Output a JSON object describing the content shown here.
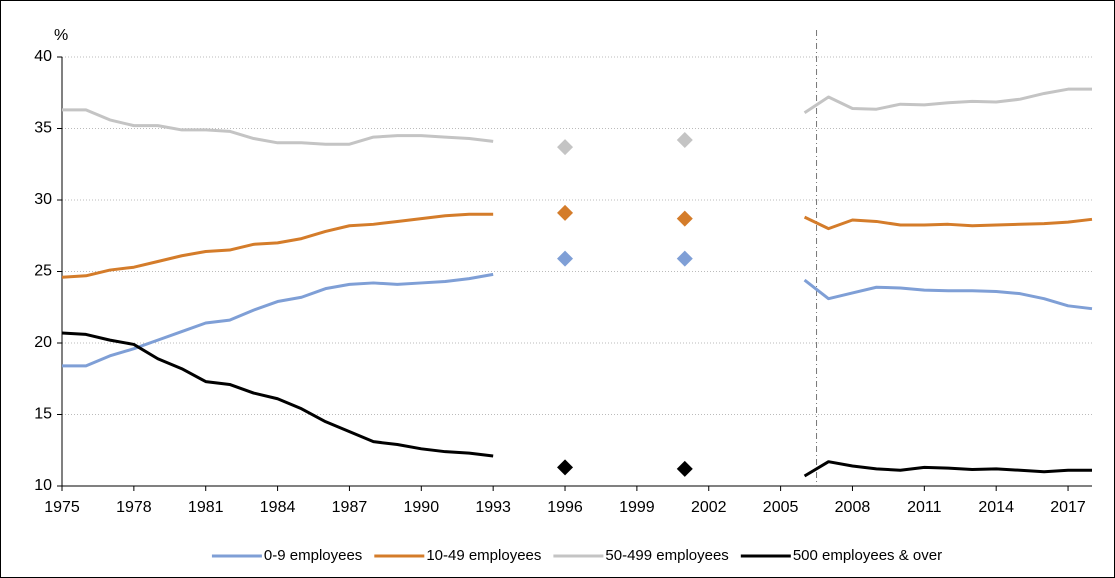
{
  "chart_data": {
    "type": "line",
    "y_label": "%",
    "x": [
      1975,
      1976,
      1977,
      1978,
      1979,
      1980,
      1981,
      1982,
      1983,
      1984,
      1985,
      1986,
      1987,
      1988,
      1989,
      1990,
      1991,
      1992,
      1993,
      1994,
      1995,
      1996,
      1997,
      1998,
      1999,
      2000,
      2001,
      2002,
      2003,
      2004,
      2005,
      2006,
      2007,
      2008,
      2009,
      2010,
      2011,
      2012,
      2013,
      2014,
      2015,
      2016,
      2017,
      2018
    ],
    "series": [
      {
        "name": "0-9 employees",
        "color": "#7f9fd6",
        "values": [
          18.4,
          18.4,
          19.1,
          19.6,
          20.2,
          20.8,
          21.4,
          21.6,
          22.3,
          22.9,
          23.2,
          23.8,
          24.1,
          24.2,
          24.1,
          24.2,
          24.3,
          24.5,
          24.8,
          null,
          null,
          25.9,
          null,
          null,
          null,
          null,
          25.9,
          null,
          null,
          null,
          null,
          24.4,
          23.1,
          23.5,
          23.9,
          23.85,
          23.7,
          23.65,
          23.65,
          23.6,
          23.45,
          23.1,
          22.6,
          22.4
        ]
      },
      {
        "name": "10-49 employees",
        "color": "#d47c2a",
        "values": [
          24.6,
          24.7,
          25.1,
          25.3,
          25.7,
          26.1,
          26.4,
          26.5,
          26.9,
          27.0,
          27.3,
          27.8,
          28.2,
          28.3,
          28.5,
          28.7,
          28.9,
          29.0,
          29.0,
          null,
          null,
          29.1,
          null,
          null,
          null,
          null,
          28.7,
          null,
          null,
          null,
          null,
          28.8,
          28.0,
          28.6,
          28.5,
          28.25,
          28.25,
          28.3,
          28.2,
          28.25,
          28.3,
          28.35,
          28.45,
          28.65
        ]
      },
      {
        "name": "50-499 employees",
        "color": "#c4c4c4",
        "values": [
          36.3,
          36.3,
          35.6,
          35.2,
          35.2,
          34.9,
          34.9,
          34.8,
          34.3,
          34.0,
          34.0,
          33.9,
          33.9,
          34.4,
          34.5,
          34.5,
          34.4,
          34.3,
          34.1,
          null,
          null,
          33.7,
          null,
          null,
          null,
          null,
          34.2,
          null,
          null,
          null,
          null,
          36.1,
          37.2,
          36.4,
          36.35,
          36.7,
          36.65,
          36.8,
          36.9,
          36.85,
          37.05,
          37.45,
          37.75,
          37.75
        ]
      },
      {
        "name": "500 employees & over",
        "color": "#000000",
        "values": [
          20.7,
          20.6,
          20.2,
          19.9,
          18.9,
          18.2,
          17.3,
          17.1,
          16.5,
          16.1,
          15.4,
          14.5,
          13.8,
          13.1,
          12.9,
          12.6,
          12.4,
          12.3,
          12.1,
          null,
          null,
          11.3,
          null,
          null,
          null,
          null,
          11.2,
          null,
          null,
          null,
          null,
          10.7,
          11.7,
          11.4,
          11.2,
          11.1,
          11.3,
          11.25,
          11.15,
          11.2,
          11.1,
          11.0,
          11.1,
          11.1
        ]
      }
    ],
    "xlim": [
      1975,
      2018
    ],
    "xticks": [
      1975,
      1978,
      1981,
      1984,
      1987,
      1990,
      1993,
      1996,
      1999,
      2002,
      2005,
      2008,
      2011,
      2014,
      2017
    ],
    "ylim": [
      10,
      40
    ],
    "yticks": [
      10,
      15,
      20,
      25,
      30,
      35,
      40
    ],
    "grid": true,
    "vline": 2006.5,
    "legend": "bottom"
  }
}
